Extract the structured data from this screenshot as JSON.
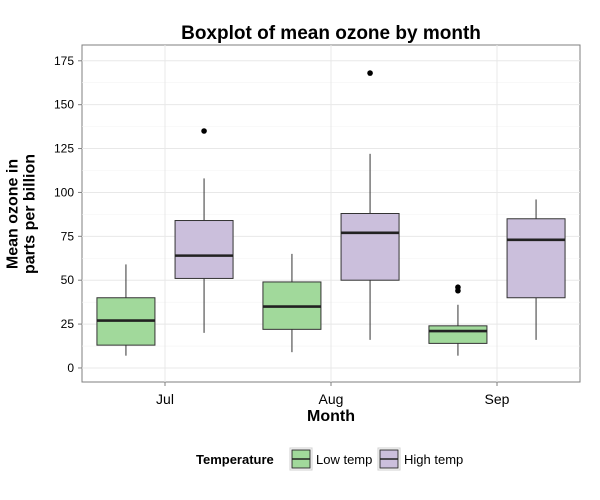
{
  "chart_data": {
    "type": "boxplot",
    "title": "Boxplot of mean ozone by month",
    "xlabel": "Month",
    "ylabel": "Mean ozone in\nparts per billion",
    "ylim": [
      -8,
      184
    ],
    "yticks": [
      0,
      25,
      50,
      75,
      100,
      125,
      150,
      175
    ],
    "categories": [
      "Jul",
      "Aug",
      "Sep"
    ],
    "grid": true,
    "legend": {
      "title": "Temperature",
      "position": "bottom",
      "entries": [
        "Low temp",
        "High temp"
      ]
    },
    "series": [
      {
        "name": "Low temp",
        "color": "#a1d99b",
        "boxes": [
          {
            "category": "Jul",
            "whisker_low": 7,
            "q1": 13,
            "median": 27,
            "q3": 40,
            "whisker_high": 59,
            "outliers": []
          },
          {
            "category": "Aug",
            "whisker_low": 9,
            "q1": 22,
            "median": 35,
            "q3": 49,
            "whisker_high": 65,
            "outliers": []
          },
          {
            "category": "Sep",
            "whisker_low": 7,
            "q1": 14,
            "median": 21,
            "q3": 24,
            "whisker_high": 36,
            "outliers": [
              44,
              46
            ]
          }
        ]
      },
      {
        "name": "High temp",
        "color": "#cbbfdc",
        "boxes": [
          {
            "category": "Jul",
            "whisker_low": 20,
            "q1": 51,
            "median": 64,
            "q3": 84,
            "whisker_high": 108,
            "outliers": [
              135
            ]
          },
          {
            "category": "Aug",
            "whisker_low": 16,
            "q1": 50,
            "median": 77,
            "q3": 88,
            "whisker_high": 122,
            "outliers": [
              168
            ]
          },
          {
            "category": "Sep",
            "whisker_low": 16,
            "q1": 40,
            "median": 73,
            "q3": 85,
            "whisker_high": 96,
            "outliers": []
          }
        ]
      }
    ]
  }
}
